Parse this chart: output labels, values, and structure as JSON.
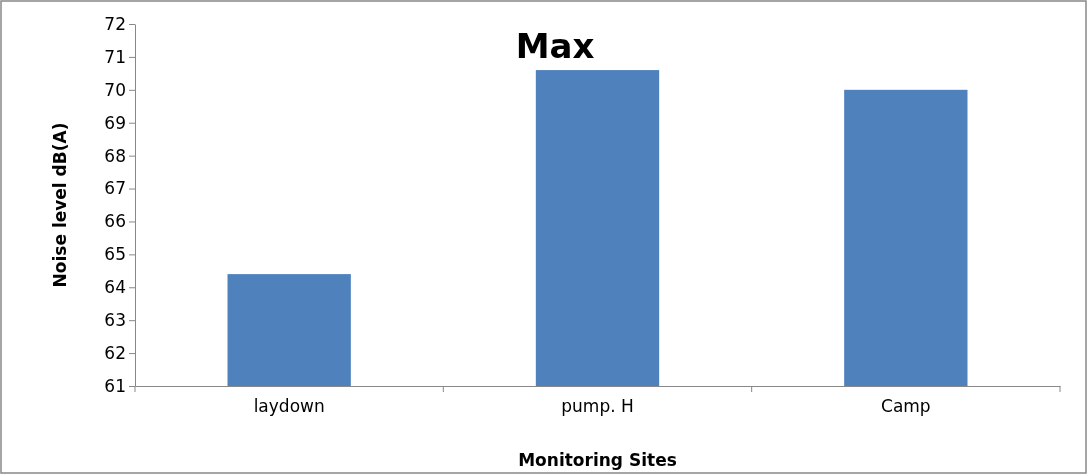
{
  "chart_data": {
    "type": "bar",
    "title": "Max",
    "xlabel": "Monitoring Sites",
    "ylabel": "Noise level dB(A)",
    "categories": [
      "laydown",
      "pump. H",
      "Camp"
    ],
    "values": [
      64.4,
      70.6,
      70.0
    ],
    "color": "#4f81bd",
    "ylim": [
      61,
      72
    ],
    "yticks": [
      61,
      62,
      63,
      64,
      65,
      66,
      67,
      68,
      69,
      70,
      71,
      72
    ],
    "grid": false
  }
}
